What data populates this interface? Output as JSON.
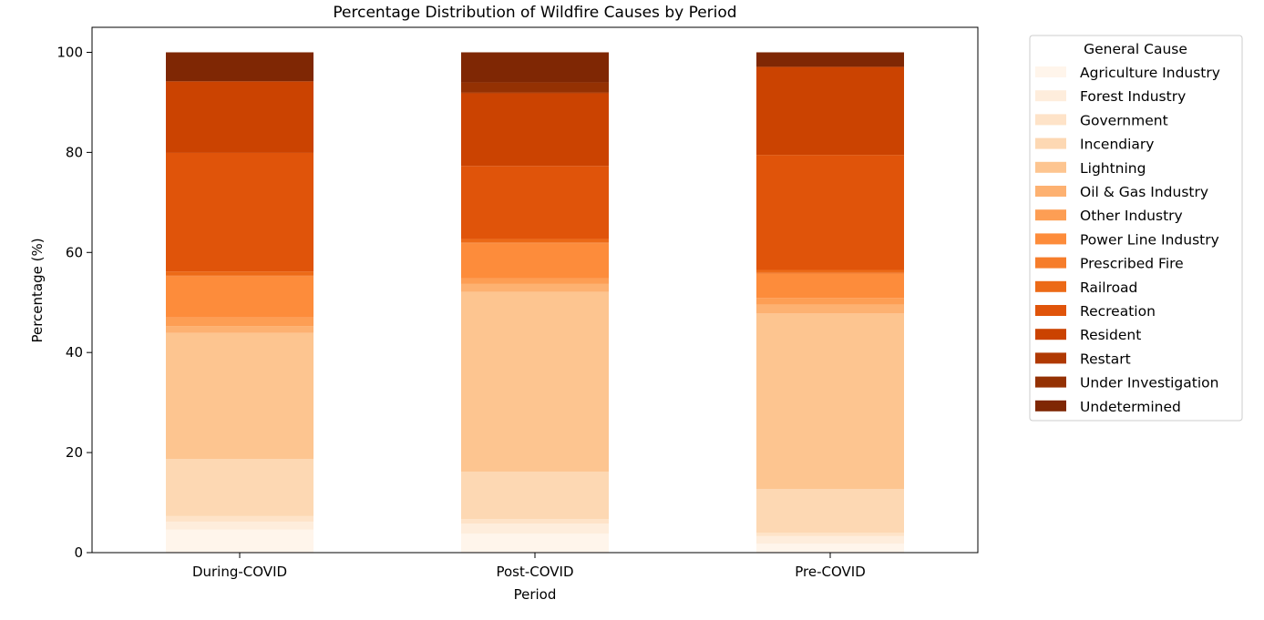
{
  "chart_data": {
    "type": "bar",
    "stacked": true,
    "title": "Percentage Distribution of Wildfire Causes by Period",
    "xlabel": "Period",
    "ylabel": "Percentage (%)",
    "ylim": [
      0,
      105
    ],
    "yticks": [
      0,
      20,
      40,
      60,
      80,
      100
    ],
    "grid": false,
    "legend_title": "General Cause",
    "legend_position": "outside-right",
    "categories": [
      "During-COVID",
      "Post-COVID",
      "Pre-COVID"
    ],
    "series": [
      {
        "name": "Agriculture Industry",
        "color": "#fff5eb",
        "values": [
          4.6,
          3.8,
          1.8
        ]
      },
      {
        "name": "Forest Industry",
        "color": "#feeddc",
        "values": [
          1.6,
          2.0,
          1.5
        ]
      },
      {
        "name": "Government",
        "color": "#fee3c8",
        "values": [
          1.1,
          0.9,
          0.7
        ]
      },
      {
        "name": "Incendiary",
        "color": "#fdd8b3",
        "values": [
          11.4,
          9.5,
          8.7
        ]
      },
      {
        "name": "Lightning",
        "color": "#fdc590",
        "values": [
          25.2,
          35.9,
          35.1
        ]
      },
      {
        "name": "Oil & Gas Industry",
        "color": "#fdb171",
        "values": [
          1.4,
          1.6,
          1.8
        ]
      },
      {
        "name": "Other Industry",
        "color": "#fd9e54",
        "values": [
          1.7,
          1.1,
          1.3
        ]
      },
      {
        "name": "Power Line Industry",
        "color": "#fd8c3b",
        "values": [
          8.2,
          7.0,
          4.8
        ]
      },
      {
        "name": "Prescribed Fire",
        "color": "#f67d2b",
        "values": [
          0.2,
          0.2,
          0.2
        ]
      },
      {
        "name": "Railroad",
        "color": "#ec6a17",
        "values": [
          0.8,
          0.7,
          0.6
        ]
      },
      {
        "name": "Recreation",
        "color": "#e0540a",
        "values": [
          23.7,
          14.6,
          23.0
        ]
      },
      {
        "name": "Resident",
        "color": "#cb4301",
        "values": [
          14.3,
          14.5,
          17.6
        ]
      },
      {
        "name": "Restart",
        "color": "#b03902",
        "values": [
          0.0,
          0.2,
          0.0
        ]
      },
      {
        "name": "Under Investigation",
        "color": "#943103",
        "values": [
          0.0,
          2.0,
          0.0
        ]
      },
      {
        "name": "Undetermined",
        "color": "#7f2704",
        "values": [
          5.8,
          6.0,
          2.9
        ]
      }
    ]
  }
}
